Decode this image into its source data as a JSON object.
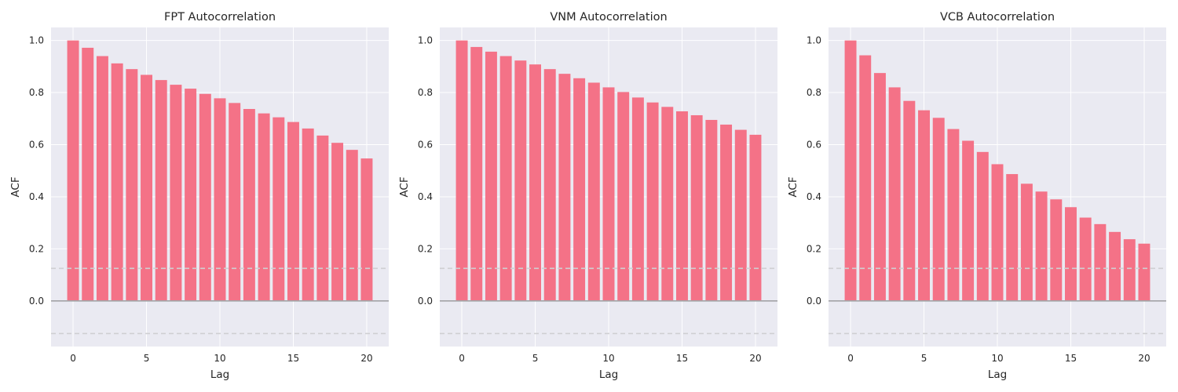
{
  "colors": {
    "bar": "#f47287",
    "plot_background": "#eaeaf2",
    "grid": "#ffffff",
    "zero_line": "#a3a3a6",
    "confidence_line": "#cfcfd2"
  },
  "chart_data": [
    {
      "type": "bar",
      "title": "FPT Autocorrelation",
      "xlabel": "Lag",
      "ylabel": "ACF",
      "x": [
        0,
        1,
        2,
        3,
        4,
        5,
        6,
        7,
        8,
        9,
        10,
        11,
        12,
        13,
        14,
        15,
        16,
        17,
        18,
        19,
        20
      ],
      "values": [
        1.0,
        0.972,
        0.94,
        0.912,
        0.89,
        0.868,
        0.848,
        0.83,
        0.815,
        0.795,
        0.778,
        0.76,
        0.737,
        0.72,
        0.705,
        0.687,
        0.662,
        0.635,
        0.607,
        0.58,
        0.547
      ],
      "xlim": [
        -1.5,
        21.5
      ],
      "ylim": [
        -0.175,
        1.05
      ],
      "xticks": [
        0,
        5,
        10,
        15,
        20
      ],
      "yticks": [
        0.0,
        0.2,
        0.4,
        0.6,
        0.8,
        1.0
      ],
      "xtick_labels": [
        "0",
        "5",
        "10",
        "15",
        "20"
      ],
      "ytick_labels": [
        "0.0",
        "0.2",
        "0.4",
        "0.6",
        "0.8",
        "1.0"
      ],
      "confidence_bounds": [
        0.125,
        -0.125
      ],
      "grid": true
    },
    {
      "type": "bar",
      "title": "VNM Autocorrelation",
      "xlabel": "Lag",
      "ylabel": "ACF",
      "x": [
        0,
        1,
        2,
        3,
        4,
        5,
        6,
        7,
        8,
        9,
        10,
        11,
        12,
        13,
        14,
        15,
        16,
        17,
        18,
        19,
        20
      ],
      "values": [
        1.0,
        0.975,
        0.957,
        0.94,
        0.923,
        0.908,
        0.89,
        0.872,
        0.855,
        0.838,
        0.82,
        0.802,
        0.781,
        0.762,
        0.745,
        0.728,
        0.713,
        0.695,
        0.677,
        0.657,
        0.638
      ],
      "xlim": [
        -1.5,
        21.5
      ],
      "ylim": [
        -0.175,
        1.05
      ],
      "xticks": [
        0,
        5,
        10,
        15,
        20
      ],
      "yticks": [
        0.0,
        0.2,
        0.4,
        0.6,
        0.8,
        1.0
      ],
      "xtick_labels": [
        "0",
        "5",
        "10",
        "15",
        "20"
      ],
      "ytick_labels": [
        "0.0",
        "0.2",
        "0.4",
        "0.6",
        "0.8",
        "1.0"
      ],
      "confidence_bounds": [
        0.125,
        -0.125
      ],
      "grid": true
    },
    {
      "type": "bar",
      "title": "VCB Autocorrelation",
      "xlabel": "Lag",
      "ylabel": "ACF",
      "x": [
        0,
        1,
        2,
        3,
        4,
        5,
        6,
        7,
        8,
        9,
        10,
        11,
        12,
        13,
        14,
        15,
        16,
        17,
        18,
        19,
        20
      ],
      "values": [
        1.0,
        0.943,
        0.875,
        0.82,
        0.768,
        0.732,
        0.703,
        0.66,
        0.615,
        0.572,
        0.525,
        0.487,
        0.45,
        0.42,
        0.39,
        0.36,
        0.32,
        0.295,
        0.265,
        0.237,
        0.22
      ],
      "xlim": [
        -1.5,
        21.5
      ],
      "ylim": [
        -0.175,
        1.05
      ],
      "xticks": [
        0,
        5,
        10,
        15,
        20
      ],
      "yticks": [
        0.0,
        0.2,
        0.4,
        0.6,
        0.8,
        1.0
      ],
      "xtick_labels": [
        "0",
        "5",
        "10",
        "15",
        "20"
      ],
      "ytick_labels": [
        "0.0",
        "0.2",
        "0.4",
        "0.6",
        "0.8",
        "1.0"
      ],
      "confidence_bounds": [
        0.125,
        -0.125
      ],
      "grid": true
    }
  ]
}
